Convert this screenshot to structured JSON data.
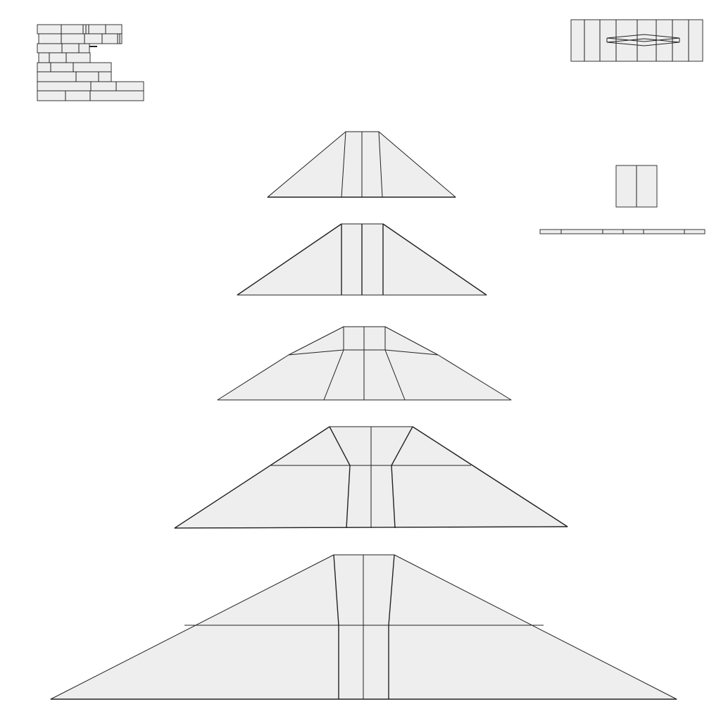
{
  "diagram": {
    "kind": "wireframe-layout",
    "colors": {
      "fill": "#eeeeee",
      "stroke": "#222222",
      "background": "#ffffff"
    }
  }
}
